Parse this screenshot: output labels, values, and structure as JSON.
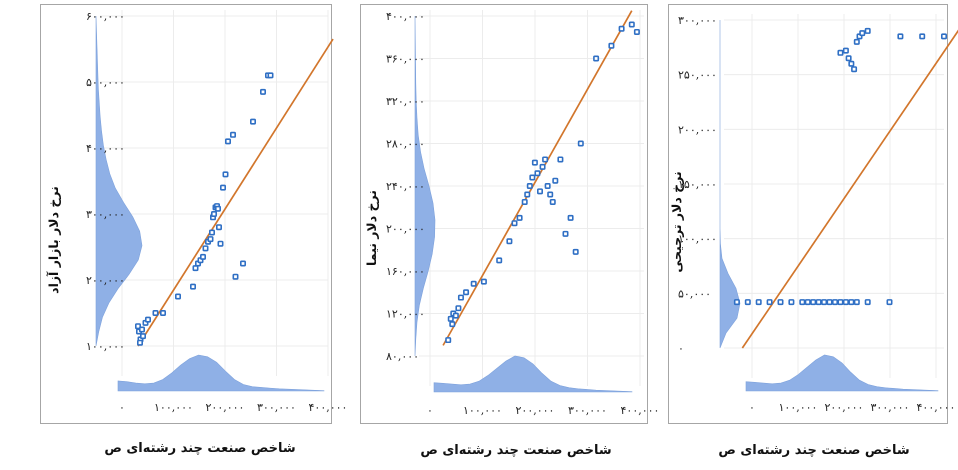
{
  "chart_data": [
    {
      "type": "scatter",
      "xlabel": "شاخص صنعت چند رشته‌ای ص",
      "ylabel": "نرخ دلار بازار آزاد",
      "x_ticks": [
        "۰",
        "۱۰۰,۰۰۰",
        "۲۰۰,۰۰۰",
        "۳۰۰,۰۰۰",
        "۴۰۰,۰۰۰"
      ],
      "y_ticks": [
        "۱۰۰,۰۰۰",
        "۲۰۰,۰۰۰",
        "۳۰۰,۰۰۰",
        "۴۰۰,۰۰۰",
        "۵۰۰,۰۰۰",
        "۶۰۰,۰۰۰"
      ],
      "xlim": [
        0,
        400000
      ],
      "ylim": [
        100000,
        600000
      ],
      "fit_line": [
        [
          20000,
          100000
        ],
        [
          410000,
          565000
        ]
      ],
      "x": [
        20000,
        22000,
        25000,
        24000,
        28000,
        30000,
        35000,
        40000,
        55000,
        70000,
        100000,
        130000,
        135000,
        140000,
        145000,
        150000,
        155000,
        160000,
        165000,
        168000,
        170000,
        172000,
        175000,
        178000,
        180000,
        182000,
        185000,
        190000,
        195000,
        200000,
        210000,
        215000,
        230000,
        250000,
        270000,
        280000,
        285000
      ],
      "y": [
        130000,
        122000,
        110000,
        105000,
        125000,
        115000,
        135000,
        140000,
        150000,
        150000,
        175000,
        190000,
        218000,
        225000,
        230000,
        235000,
        248000,
        258000,
        262000,
        272000,
        295000,
        300000,
        310000,
        312000,
        308000,
        280000,
        255000,
        340000,
        360000,
        410000,
        420000,
        205000,
        225000,
        440000,
        485000,
        510000,
        510000
      ],
      "bins_x": "density",
      "grid": true
    },
    {
      "type": "scatter",
      "xlabel": "شاخص صنعت چند رشته‌ای ص",
      "ylabel": "نرخ دلار نیما",
      "x_ticks": [
        "۰",
        "۱۰۰,۰۰۰",
        "۲۰۰,۰۰۰",
        "۳۰۰,۰۰۰",
        "۴۰۰,۰۰۰"
      ],
      "y_ticks": [
        "۸۰,۰۰۰",
        "۱۲۰,۰۰۰",
        "۱۶۰,۰۰۰",
        "۲۰۰,۰۰۰",
        "۲۴۰,۰۰۰",
        "۲۸۰,۰۰۰",
        "۳۲۰,۰۰۰",
        "۳۶۰,۰۰۰",
        "۴۰۰,۰۰۰"
      ],
      "xlim": [
        0,
        400000
      ],
      "ylim": [
        80000,
        400000
      ],
      "fit_line": [
        [
          10000,
          90000
        ],
        [
          380000,
          405000
        ]
      ],
      "x": [
        20000,
        25000,
        28000,
        30000,
        35000,
        40000,
        45000,
        55000,
        70000,
        90000,
        120000,
        140000,
        150000,
        160000,
        170000,
        175000,
        180000,
        185000,
        190000,
        195000,
        200000,
        205000,
        210000,
        215000,
        220000,
        225000,
        230000,
        240000,
        250000,
        260000,
        270000,
        280000,
        310000,
        340000,
        360000,
        380000,
        390000
      ],
      "y": [
        95000,
        115000,
        110000,
        120000,
        118000,
        125000,
        135000,
        140000,
        148000,
        150000,
        170000,
        188000,
        205000,
        210000,
        225000,
        232000,
        240000,
        248000,
        262000,
        252000,
        235000,
        258000,
        265000,
        240000,
        232000,
        225000,
        245000,
        265000,
        195000,
        210000,
        178000,
        280000,
        360000,
        372000,
        388000,
        392000,
        385000
      ],
      "bins_x": "density",
      "grid": true
    },
    {
      "type": "scatter",
      "xlabel": "شاخص صنعت چند رشته‌ای ص",
      "ylabel": "نرخ دلار ترجیحی",
      "x_ticks": [
        "۰",
        "۱۰۰,۰۰۰",
        "۲۰۰,۰۰۰",
        "۳۰۰,۰۰۰",
        "۴۰۰,۰۰۰"
      ],
      "y_ticks": [
        "۰",
        "۵۰,۰۰۰",
        "۱۰۰,۰۰۰",
        "۱۵۰,۰۰۰",
        "۲۰۰,۰۰۰",
        "۲۵۰,۰۰۰",
        "۳۰۰,۰۰۰"
      ],
      "xlim": [
        0,
        400000
      ],
      "ylim": [
        0,
        300000
      ],
      "fit_line": [
        [
          30000,
          0
        ],
        [
          430000,
          293000
        ]
      ],
      "x": [
        20000,
        40000,
        60000,
        80000,
        100000,
        120000,
        140000,
        150000,
        160000,
        170000,
        180000,
        190000,
        200000,
        210000,
        220000,
        230000,
        240000,
        260000,
        300000,
        210000,
        220000,
        225000,
        230000,
        235000,
        240000,
        245000,
        250000,
        260000,
        320000,
        360000,
        400000
      ],
      "y": [
        42000,
        42000,
        42000,
        42000,
        42000,
        42000,
        42000,
        42000,
        42000,
        42000,
        42000,
        42000,
        42000,
        42000,
        42000,
        42000,
        42000,
        42000,
        42000,
        270000,
        272000,
        265000,
        260000,
        255000,
        280000,
        285000,
        288000,
        290000,
        285000,
        285000,
        285000
      ],
      "bins_x": "density",
      "grid": true
    }
  ]
}
